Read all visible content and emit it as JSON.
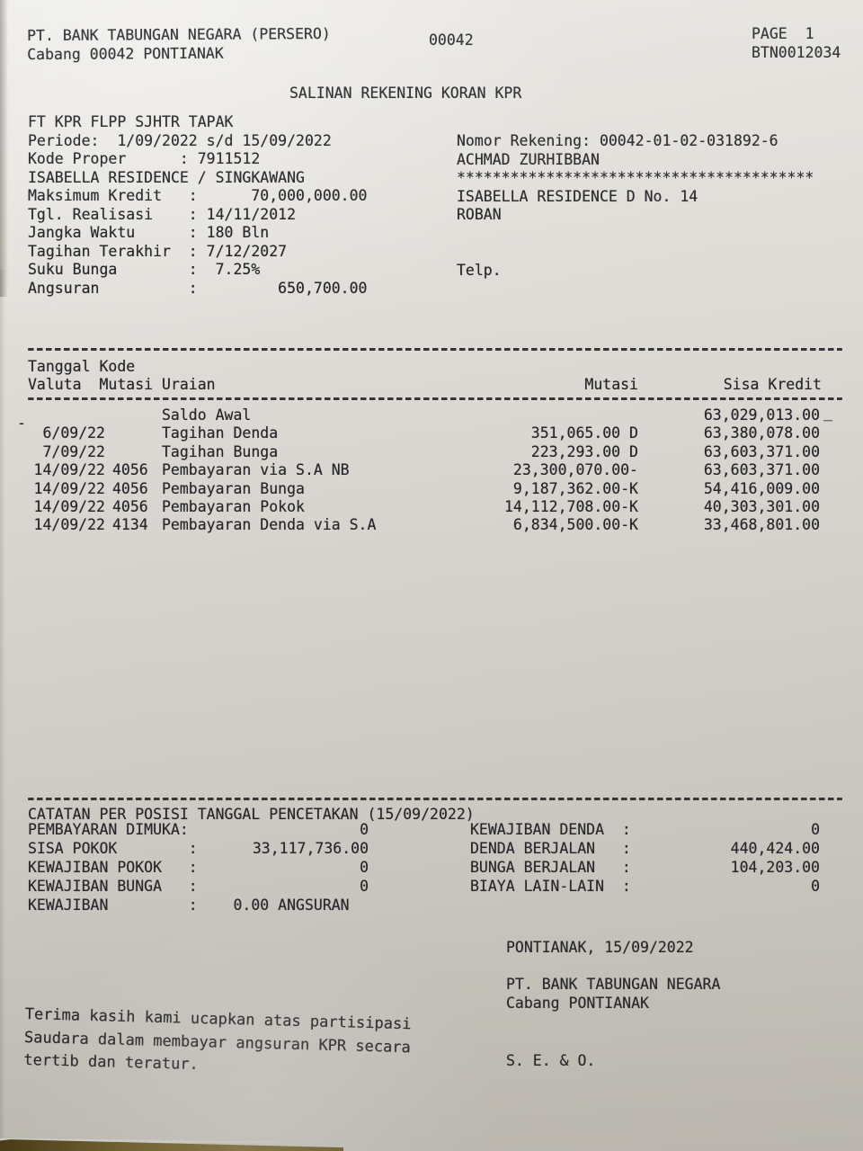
{
  "photo": {
    "paper_color": "#d9d6d0",
    "ink_color": "#26262a",
    "desk_color": "#6b5a22"
  },
  "header": {
    "company_line1": "PT. BANK TABUNGAN NEGARA (PERSERO)",
    "company_line2": "Cabang 00042 PONTIANAK",
    "station_code": "00042",
    "page_label": "PAGE  1",
    "doc_code": "BTN0012034"
  },
  "title": "SALINAN REKENING KORAN KPR",
  "loan_info": {
    "left_lines": [
      "FT KPR FLPP SJHTR TAPAK",
      "Periode:  1/09/2022 s/d 15/09/2022",
      "Kode Proper      : 7911512",
      "ISABELLA RESIDENCE / SINGKAWANG",
      "Maksimum Kredit   :      70,000,000.00",
      "Tgl. Realisasi    : 14/11/2012",
      "Jangka Waktu      : 180 Bln",
      "Tagihan Terakhir  : 7/12/2027",
      "Suku Bunga        :  7.25%",
      "Angsuran          :         650,700.00"
    ],
    "right_lines": [
      "Nomor Rekening: 00042-01-02-031892-6",
      "ACHMAD ZURHIBBAN",
      "****************************************",
      "ISABELLA RESIDENCE D No. 14",
      "ROBAN",
      "",
      "",
      "Telp."
    ]
  },
  "table": {
    "header_line1": "Tanggal Kode",
    "header_line2_left": "Valuta  Mutasi Uraian",
    "header_mutasi": "Mutasi",
    "header_sisa": "Sisa Kredit",
    "margin_dash": "-",
    "margin_underscore": "_",
    "rows": [
      {
        "valuta": "",
        "kode": "",
        "uraian": "Saldo Awal",
        "mutasi": "",
        "sisa": "63,029,013.00"
      },
      {
        "valuta": "6/09/22",
        "kode": "",
        "uraian": "Tagihan Denda",
        "mutasi": "351,065.00 D",
        "sisa": "63,380,078.00"
      },
      {
        "valuta": "7/09/22",
        "kode": "",
        "uraian": "Tagihan Bunga",
        "mutasi": "223,293.00 D",
        "sisa": "63,603,371.00"
      },
      {
        "valuta": "14/09/22",
        "kode": "4056",
        "uraian": "Pembayaran via S.A NB",
        "mutasi": "23,300,070.00-",
        "sisa": "63,603,371.00"
      },
      {
        "valuta": "14/09/22",
        "kode": "4056",
        "uraian": "Pembayaran Bunga",
        "mutasi": "9,187,362.00-K",
        "sisa": "54,416,009.00"
      },
      {
        "valuta": "14/09/22",
        "kode": "4056",
        "uraian": "Pembayaran Pokok",
        "mutasi": "14,112,708.00-K",
        "sisa": "40,303,301.00"
      },
      {
        "valuta": "14/09/22",
        "kode": "4134",
        "uraian": "Pembayaran Denda via S.A",
        "mutasi": "6,834,500.00-K",
        "sisa": "33,468,801.00"
      }
    ]
  },
  "catatan": {
    "title": "CATATAN PER POSISI TANGGAL PENCETAKAN (15/09/2022)",
    "left_rows": [
      {
        "label": "PEMBAYARAN DIMUKA:",
        "value": "0"
      },
      {
        "label": "SISA POKOK        :",
        "value": "33,117,736.00"
      },
      {
        "label": "KEWAJIBAN POKOK   :",
        "value": "0"
      },
      {
        "label": "KEWAJIBAN BUNGA   :",
        "value": "0"
      }
    ],
    "last_line": "KEWAJIBAN         :    0.00 ANGSURAN",
    "right_rows": [
      {
        "label": "KEWAJIBAN DENDA  :",
        "value": "0"
      },
      {
        "label": "DENDA BERJALAN   :",
        "value": "440,424.00"
      },
      {
        "label": "BUNGA BERJALAN   :",
        "value": "104,203.00"
      },
      {
        "label": "BIAYA LAIN-LAIN  :",
        "value": "0"
      }
    ]
  },
  "footer": {
    "place_date": "PONTIANAK, 15/09/2022",
    "company_line1": "PT. BANK TABUNGAN NEGARA",
    "company_line2": "Cabang PONTIANAK",
    "seo": "S. E. & O.",
    "thanks_lines": [
      "Terima kasih kami ucapkan atas partisipasi",
      "Saudara dalam membayar angsuran KPR secara",
      "tertib dan teratur."
    ]
  }
}
